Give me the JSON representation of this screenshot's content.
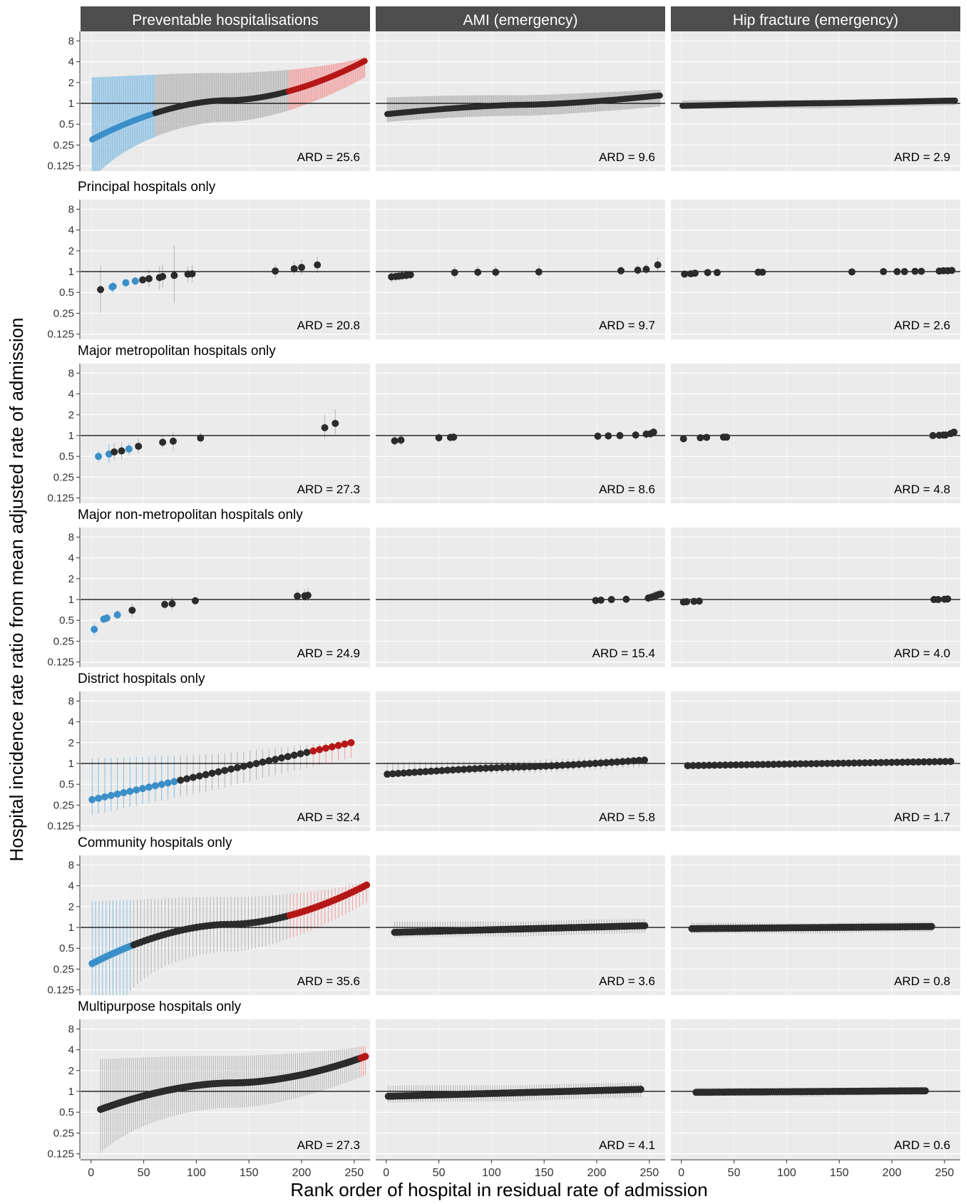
{
  "figure": {
    "ylabel": "Hospital incidence rate ratio from mean adjusted rate of admission",
    "xlabel": "Rank order of hospital in residual rate of admission",
    "columns": [
      "Preventable hospitalisations",
      "AMI (emergency)",
      "Hip fracture (emergency)"
    ],
    "row_titles": [
      "",
      "Principal hospitals only",
      "Major metropolitan hospitals only",
      "Major non-metropolitan hospitals only",
      "District hospitals only",
      "Community hospitals only",
      "Multipurpose hospitals only"
    ],
    "ard_labels": [
      [
        "ARD = 25.6",
        "ARD = 9.6",
        "ARD = 2.9"
      ],
      [
        "ARD = 20.8",
        "ARD = 9.7",
        "ARD = 2.6"
      ],
      [
        "ARD = 27.3",
        "ARD = 8.6",
        "ARD = 4.8"
      ],
      [
        "ARD = 24.9",
        "ARD = 15.4",
        "ARD = 4.0"
      ],
      [
        "ARD = 32.4",
        "ARD = 5.8",
        "ARD = 1.7"
      ],
      [
        "ARD = 35.6",
        "ARD = 3.6",
        "ARD = 0.8"
      ],
      [
        "ARD = 27.3",
        "ARD = 4.1",
        "ARD = 0.6"
      ]
    ]
  },
  "colors": {
    "strip": "#4d4d4d",
    "strip_text": "#ffffff",
    "panel_bg": "#ebebeb",
    "grid": "#ffffff",
    "ref_line": "#000000",
    "point_default": "#2b2b2b",
    "point_low": "#3a8fc9",
    "point_high": "#b51717",
    "ci_default": "#b8b8b8",
    "ci_low": "#8ec1e3",
    "ci_high": "#f0a3a3"
  },
  "chart_data": {
    "type": "scatter",
    "facet_layout": {
      "rows": 7,
      "cols": 3
    },
    "x_axis": {
      "range": [
        -10,
        265
      ],
      "ticks": [
        0,
        50,
        100,
        150,
        200,
        250
      ]
    },
    "y_axis": {
      "scale": "log2",
      "range": [
        0.105,
        11
      ],
      "ticks": [
        0.125,
        0.25,
        0.5,
        1,
        2,
        4,
        8
      ],
      "tick_labels": [
        "0.125",
        "0.25",
        "0.5",
        "1",
        "2",
        "4",
        "8"
      ]
    },
    "reference_line": 1,
    "grid": true,
    "panels": [
      {
        "row": 0,
        "col": 0,
        "curve": {
          "n": 260,
          "x_start": 1,
          "x_step": 1,
          "lo": 0.3,
          "hi": 4.1,
          "gamma": 1.8,
          "ci": [
            0.5,
            2.8
          ],
          "low_cutoff": 0.72,
          "high_cutoff": 1.5
        }
      },
      {
        "row": 0,
        "col": 1,
        "curve": {
          "n": 260,
          "x_start": 1,
          "x_step": 1,
          "lo": 0.7,
          "hi": 1.3,
          "gamma": 1.5,
          "ci": [
            0.72,
            1.4
          ]
        }
      },
      {
        "row": 0,
        "col": 2,
        "curve": {
          "n": 260,
          "x_start": 1,
          "x_step": 1,
          "lo": 0.92,
          "hi": 1.1,
          "gamma": 1.2,
          "ci": [
            0.88,
            1.15
          ]
        }
      },
      {
        "row": 1,
        "col": 0,
        "points": [
          {
            "x": 9,
            "y": 0.55,
            "lo": 0.25,
            "hi": 1.2
          },
          {
            "x": 20,
            "y": 0.6,
            "lo": 0.5,
            "hi": 0.7,
            "g": "low"
          },
          {
            "x": 21,
            "y": 0.61,
            "lo": 0.5,
            "hi": 0.72,
            "g": "low"
          },
          {
            "x": 33,
            "y": 0.69,
            "lo": 0.6,
            "hi": 0.78,
            "g": "low"
          },
          {
            "x": 42,
            "y": 0.73,
            "lo": 0.63,
            "hi": 0.84,
            "g": "low"
          },
          {
            "x": 49,
            "y": 0.76,
            "lo": 0.66,
            "hi": 0.88
          },
          {
            "x": 55,
            "y": 0.79,
            "lo": 0.6,
            "hi": 1.05
          },
          {
            "x": 65,
            "y": 0.82,
            "lo": 0.55,
            "hi": 1.2
          },
          {
            "x": 68,
            "y": 0.85,
            "lo": 0.6,
            "hi": 1.25
          },
          {
            "x": 79,
            "y": 0.88,
            "lo": 0.35,
            "hi": 2.4
          },
          {
            "x": 92,
            "y": 0.92,
            "lo": 0.7,
            "hi": 1.2
          },
          {
            "x": 96,
            "y": 0.93,
            "lo": 0.7,
            "hi": 1.25
          },
          {
            "x": 175,
            "y": 1.02,
            "lo": 0.8,
            "hi": 1.3
          },
          {
            "x": 193,
            "y": 1.1,
            "lo": 0.9,
            "hi": 1.4
          },
          {
            "x": 200,
            "y": 1.15,
            "lo": 0.9,
            "hi": 1.5
          },
          {
            "x": 215,
            "y": 1.25,
            "lo": 0.95,
            "hi": 1.65
          }
        ]
      },
      {
        "row": 1,
        "col": 1,
        "points": [
          {
            "x": 5,
            "y": 0.84,
            "lo": 0.7,
            "hi": 1.0
          },
          {
            "x": 9,
            "y": 0.85,
            "lo": 0.72,
            "hi": 1.0
          },
          {
            "x": 12,
            "y": 0.86,
            "lo": 0.73,
            "hi": 1.02
          },
          {
            "x": 15,
            "y": 0.87,
            "lo": 0.74,
            "hi": 1.03
          },
          {
            "x": 19,
            "y": 0.88,
            "lo": 0.76,
            "hi": 1.04
          },
          {
            "x": 23,
            "y": 0.9,
            "lo": 0.78,
            "hi": 1.05
          },
          {
            "x": 65,
            "y": 0.97,
            "lo": 0.8,
            "hi": 1.2
          },
          {
            "x": 87,
            "y": 0.98,
            "lo": 0.82,
            "hi": 1.2
          },
          {
            "x": 104,
            "y": 0.98,
            "lo": 0.82,
            "hi": 1.2
          },
          {
            "x": 145,
            "y": 0.99,
            "lo": 0.8,
            "hi": 1.25
          },
          {
            "x": 223,
            "y": 1.03,
            "lo": 0.88,
            "hi": 1.2
          },
          {
            "x": 239,
            "y": 1.05,
            "lo": 0.9,
            "hi": 1.25
          },
          {
            "x": 247,
            "y": 1.08,
            "lo": 0.92,
            "hi": 1.3
          },
          {
            "x": 258,
            "y": 1.25,
            "lo": 1.0,
            "hi": 1.6
          }
        ]
      },
      {
        "row": 1,
        "col": 2,
        "points": [
          {
            "x": 3,
            "y": 0.92,
            "lo": 0.85,
            "hi": 1.0
          },
          {
            "x": 9,
            "y": 0.93,
            "lo": 0.86,
            "hi": 1.0
          },
          {
            "x": 13,
            "y": 0.95,
            "lo": 0.88,
            "hi": 1.03
          },
          {
            "x": 25,
            "y": 0.97,
            "lo": 0.9,
            "hi": 1.05
          },
          {
            "x": 34,
            "y": 0.97,
            "lo": 0.9,
            "hi": 1.05
          },
          {
            "x": 73,
            "y": 0.98,
            "lo": 0.92,
            "hi": 1.05
          },
          {
            "x": 77,
            "y": 0.98,
            "lo": 0.92,
            "hi": 1.05
          },
          {
            "x": 162,
            "y": 0.99,
            "lo": 0.93,
            "hi": 1.06
          },
          {
            "x": 192,
            "y": 1.0,
            "lo": 0.94,
            "hi": 1.07
          },
          {
            "x": 205,
            "y": 1.0,
            "lo": 0.94,
            "hi": 1.07
          },
          {
            "x": 212,
            "y": 1.0,
            "lo": 0.94,
            "hi": 1.07
          },
          {
            "x": 222,
            "y": 1.01,
            "lo": 0.95,
            "hi": 1.08
          },
          {
            "x": 228,
            "y": 1.01,
            "lo": 0.95,
            "hi": 1.08
          },
          {
            "x": 245,
            "y": 1.02,
            "lo": 0.96,
            "hi": 1.09
          },
          {
            "x": 249,
            "y": 1.03,
            "lo": 0.96,
            "hi": 1.1
          },
          {
            "x": 253,
            "y": 1.03,
            "lo": 0.96,
            "hi": 1.1
          },
          {
            "x": 257,
            "y": 1.04,
            "lo": 0.97,
            "hi": 1.12
          }
        ]
      },
      {
        "row": 2,
        "col": 0,
        "points": [
          {
            "x": 7,
            "y": 0.5,
            "lo": 0.42,
            "hi": 0.6,
            "g": "low"
          },
          {
            "x": 17,
            "y": 0.54,
            "lo": 0.4,
            "hi": 0.75,
            "g": "low"
          },
          {
            "x": 22,
            "y": 0.58,
            "lo": 0.45,
            "hi": 0.78
          },
          {
            "x": 29,
            "y": 0.6,
            "lo": 0.45,
            "hi": 0.8
          },
          {
            "x": 36,
            "y": 0.64,
            "lo": 0.52,
            "hi": 0.78,
            "g": "low"
          },
          {
            "x": 45,
            "y": 0.7,
            "lo": 0.55,
            "hi": 0.9
          },
          {
            "x": 68,
            "y": 0.8,
            "lo": 0.65,
            "hi": 1.0
          },
          {
            "x": 78,
            "y": 0.83,
            "lo": 0.6,
            "hi": 1.15
          },
          {
            "x": 104,
            "y": 0.92,
            "lo": 0.8,
            "hi": 1.1
          },
          {
            "x": 222,
            "y": 1.3,
            "lo": 0.9,
            "hi": 2.0
          },
          {
            "x": 232,
            "y": 1.5,
            "lo": 1.0,
            "hi": 2.4
          }
        ]
      },
      {
        "row": 2,
        "col": 1,
        "points": [
          {
            "x": 8,
            "y": 0.84,
            "lo": 0.7,
            "hi": 1.0
          },
          {
            "x": 14,
            "y": 0.86,
            "lo": 0.72,
            "hi": 1.02
          },
          {
            "x": 50,
            "y": 0.93,
            "lo": 0.8,
            "hi": 1.08
          },
          {
            "x": 61,
            "y": 0.94,
            "lo": 0.8,
            "hi": 1.1
          },
          {
            "x": 64,
            "y": 0.95,
            "lo": 0.82,
            "hi": 1.1
          },
          {
            "x": 201,
            "y": 0.98,
            "lo": 0.85,
            "hi": 1.12
          },
          {
            "x": 211,
            "y": 0.99,
            "lo": 0.85,
            "hi": 1.14
          },
          {
            "x": 222,
            "y": 1.0,
            "lo": 0.86,
            "hi": 1.15
          },
          {
            "x": 237,
            "y": 1.02,
            "lo": 0.88,
            "hi": 1.18
          },
          {
            "x": 247,
            "y": 1.05,
            "lo": 0.9,
            "hi": 1.22
          },
          {
            "x": 251,
            "y": 1.06,
            "lo": 0.92,
            "hi": 1.24
          },
          {
            "x": 254,
            "y": 1.12,
            "lo": 0.96,
            "hi": 1.3
          }
        ]
      },
      {
        "row": 2,
        "col": 2,
        "points": [
          {
            "x": 2,
            "y": 0.9,
            "lo": 0.8,
            "hi": 1.02
          },
          {
            "x": 18,
            "y": 0.93,
            "lo": 0.85,
            "hi": 1.02
          },
          {
            "x": 24,
            "y": 0.94,
            "lo": 0.86,
            "hi": 1.03
          },
          {
            "x": 40,
            "y": 0.95,
            "lo": 0.87,
            "hi": 1.04
          },
          {
            "x": 43,
            "y": 0.95,
            "lo": 0.87,
            "hi": 1.04
          },
          {
            "x": 239,
            "y": 1.0,
            "lo": 0.92,
            "hi": 1.08
          },
          {
            "x": 245,
            "y": 1.01,
            "lo": 0.93,
            "hi": 1.09
          },
          {
            "x": 249,
            "y": 1.02,
            "lo": 0.94,
            "hi": 1.1
          },
          {
            "x": 251,
            "y": 1.02,
            "lo": 0.94,
            "hi": 1.1
          },
          {
            "x": 256,
            "y": 1.07,
            "lo": 0.96,
            "hi": 1.18
          },
          {
            "x": 259,
            "y": 1.12,
            "lo": 1.0,
            "hi": 1.25
          }
        ]
      },
      {
        "row": 3,
        "col": 0,
        "points": [
          {
            "x": 3,
            "y": 0.37,
            "lo": 0.3,
            "hi": 0.46,
            "g": "low"
          },
          {
            "x": 12,
            "y": 0.52,
            "lo": 0.45,
            "hi": 0.6,
            "g": "low"
          },
          {
            "x": 15,
            "y": 0.54,
            "lo": 0.47,
            "hi": 0.63,
            "g": "low"
          },
          {
            "x": 25,
            "y": 0.6,
            "lo": 0.52,
            "hi": 0.7,
            "g": "low"
          },
          {
            "x": 39,
            "y": 0.7,
            "lo": 0.55,
            "hi": 0.88
          },
          {
            "x": 70,
            "y": 0.85,
            "lo": 0.72,
            "hi": 1.0
          },
          {
            "x": 77,
            "y": 0.87,
            "lo": 0.7,
            "hi": 1.1
          },
          {
            "x": 99,
            "y": 0.96,
            "lo": 0.85,
            "hi": 1.1
          },
          {
            "x": 196,
            "y": 1.12,
            "lo": 0.95,
            "hi": 1.35
          },
          {
            "x": 203,
            "y": 1.13,
            "lo": 0.95,
            "hi": 1.4
          },
          {
            "x": 206,
            "y": 1.15,
            "lo": 0.95,
            "hi": 1.45
          }
        ]
      },
      {
        "row": 3,
        "col": 1,
        "points": [
          {
            "x": 199,
            "y": 0.97,
            "lo": 0.85,
            "hi": 1.1
          },
          {
            "x": 204,
            "y": 0.98,
            "lo": 0.86,
            "hi": 1.1
          },
          {
            "x": 214,
            "y": 1.0,
            "lo": 0.88,
            "hi": 1.12
          },
          {
            "x": 228,
            "y": 1.01,
            "lo": 0.88,
            "hi": 1.14
          },
          {
            "x": 249,
            "y": 1.05,
            "lo": 0.9,
            "hi": 1.25
          },
          {
            "x": 252,
            "y": 1.08,
            "lo": 0.92,
            "hi": 1.28
          },
          {
            "x": 255,
            "y": 1.12,
            "lo": 0.95,
            "hi": 1.32
          },
          {
            "x": 257,
            "y": 1.15,
            "lo": 0.98,
            "hi": 1.35
          },
          {
            "x": 259,
            "y": 1.18,
            "lo": 1.0,
            "hi": 1.4
          },
          {
            "x": 261,
            "y": 1.2,
            "lo": 1.0,
            "hi": 1.42
          }
        ]
      },
      {
        "row": 3,
        "col": 2,
        "points": [
          {
            "x": 2,
            "y": 0.92,
            "lo": 0.82,
            "hi": 1.04
          },
          {
            "x": 5,
            "y": 0.93,
            "lo": 0.83,
            "hi": 1.05
          },
          {
            "x": 12,
            "y": 0.94,
            "lo": 0.84,
            "hi": 1.05
          },
          {
            "x": 17,
            "y": 0.95,
            "lo": 0.85,
            "hi": 1.06
          },
          {
            "x": 240,
            "y": 1.0,
            "lo": 0.9,
            "hi": 1.1
          },
          {
            "x": 244,
            "y": 1.0,
            "lo": 0.9,
            "hi": 1.12
          },
          {
            "x": 250,
            "y": 1.01,
            "lo": 0.9,
            "hi": 1.12
          },
          {
            "x": 253,
            "y": 1.02,
            "lo": 0.9,
            "hi": 1.14
          }
        ]
      },
      {
        "row": 4,
        "col": 0,
        "curve": {
          "n": 42,
          "x_start": 1,
          "x_step": 6,
          "lo": 0.3,
          "hi": 2.0,
          "gamma": 1.0,
          "ci": [
            0.6,
            1.6
          ],
          "low_cutoff": 0.55,
          "high_cutoff": 1.45
        }
      },
      {
        "row": 4,
        "col": 1,
        "curve": {
          "n": 48,
          "x_start": 1,
          "x_step": 5.2,
          "lo": 0.7,
          "hi": 1.12,
          "gamma": 1.3,
          "ci": [
            0.82,
            1.22
          ]
        }
      },
      {
        "row": 4,
        "col": 2,
        "curve": {
          "n": 50,
          "x_start": 6,
          "x_step": 5.1,
          "lo": 0.93,
          "hi": 1.07,
          "gamma": 1.0,
          "ci": [
            0.9,
            1.12
          ]
        }
      },
      {
        "row": 5,
        "col": 0,
        "curve": {
          "n": 80,
          "x_start": 1,
          "x_step": 3.3,
          "lo": 0.3,
          "hi": 4.1,
          "gamma": 1.8,
          "ci": [
            0.4,
            2.8
          ],
          "low_cutoff": 0.55,
          "high_cutoff": 1.5
        }
      },
      {
        "row": 5,
        "col": 1,
        "curve": {
          "n": 100,
          "x_start": 8,
          "x_step": 2.4,
          "lo": 0.85,
          "hi": 1.06,
          "gamma": 1.0,
          "ci": [
            0.8,
            1.3
          ]
        }
      },
      {
        "row": 5,
        "col": 2,
        "curve": {
          "n": 100,
          "x_start": 10,
          "x_step": 2.3,
          "lo": 0.96,
          "hi": 1.03,
          "gamma": 1.0,
          "ci": [
            0.85,
            1.2
          ]
        }
      },
      {
        "row": 6,
        "col": 0,
        "curve": {
          "n": 130,
          "x_start": 9,
          "x_step": 1.95,
          "lo": 0.55,
          "hi": 3.2,
          "gamma": 1.8,
          "ci": [
            0.4,
            3.2
          ],
          "high_cutoff": 3.0
        }
      },
      {
        "row": 6,
        "col": 1,
        "curve": {
          "n": 110,
          "x_start": 2,
          "x_step": 2.2,
          "lo": 0.85,
          "hi": 1.07,
          "gamma": 1.0,
          "ci": [
            0.78,
            1.3
          ]
        }
      },
      {
        "row": 6,
        "col": 2,
        "curve": {
          "n": 100,
          "x_start": 14,
          "x_step": 2.2,
          "lo": 0.97,
          "hi": 1.02,
          "gamma": 1.0,
          "ci": [
            0.88,
            1.15
          ]
        }
      }
    ]
  }
}
